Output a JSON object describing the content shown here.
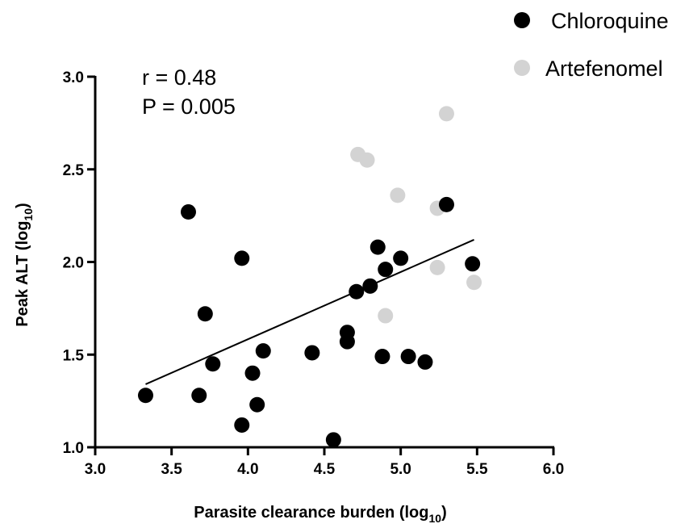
{
  "chart_data": {
    "type": "scatter",
    "xlabel": "Parasite clearance burden (log",
    "xlabel_sub": "10",
    "xlabel_close": ")",
    "ylabel": "Peak ALT (log",
    "ylabel_sub": "10",
    "ylabel_close": ")",
    "xlim": [
      3.0,
      6.0
    ],
    "ylim": [
      1.0,
      3.0
    ],
    "xticks": [
      "3.0",
      "3.5",
      "4.0",
      "4.5",
      "5.0",
      "5.5",
      "6.0"
    ],
    "yticks": [
      "1.0",
      "1.5",
      "2.0",
      "2.5",
      "3.0"
    ],
    "annotations": [
      "r = 0.48",
      "P = 0.005"
    ],
    "legend_position": "top-right",
    "grid": false,
    "series": [
      {
        "name": "Chloroquine",
        "color": "#000000",
        "points": [
          [
            3.33,
            1.28
          ],
          [
            3.61,
            2.27
          ],
          [
            3.68,
            1.28
          ],
          [
            3.72,
            1.72
          ],
          [
            3.77,
            1.45
          ],
          [
            3.96,
            2.02
          ],
          [
            3.96,
            1.12
          ],
          [
            4.03,
            1.4
          ],
          [
            4.06,
            1.23
          ],
          [
            4.1,
            1.52
          ],
          [
            4.42,
            1.51
          ],
          [
            4.56,
            1.04
          ],
          [
            4.65,
            1.62
          ],
          [
            4.65,
            1.57
          ],
          [
            4.71,
            1.84
          ],
          [
            4.8,
            1.87
          ],
          [
            4.85,
            2.08
          ],
          [
            4.88,
            1.49
          ],
          [
            4.9,
            1.96
          ],
          [
            5.0,
            2.02
          ],
          [
            5.05,
            1.49
          ],
          [
            5.16,
            1.46
          ],
          [
            5.3,
            2.31
          ],
          [
            5.47,
            1.99
          ]
        ]
      },
      {
        "name": "Artefenomel",
        "color": "#d3d3d3",
        "points": [
          [
            4.72,
            2.58
          ],
          [
            4.78,
            2.55
          ],
          [
            4.9,
            1.71
          ],
          [
            4.98,
            2.36
          ],
          [
            5.24,
            2.29
          ],
          [
            5.24,
            1.97
          ],
          [
            5.3,
            2.8
          ],
          [
            5.48,
            1.89
          ]
        ]
      }
    ],
    "regression": {
      "x1": 3.33,
      "y1": 1.34,
      "x2": 5.48,
      "y2": 2.12
    }
  }
}
